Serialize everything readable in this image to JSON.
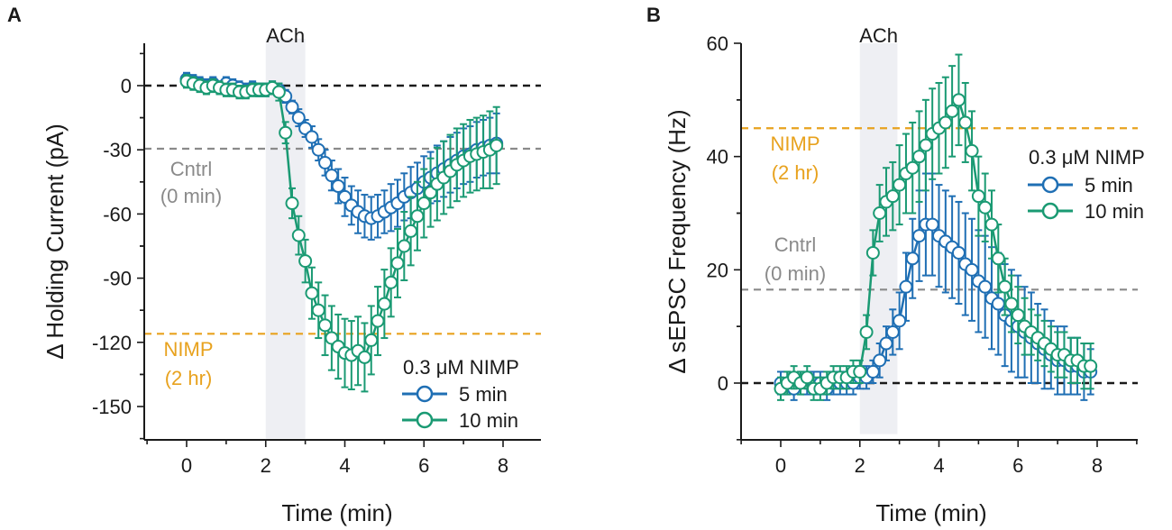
{
  "colors": {
    "series_5min": "#1f6fb4",
    "series_10min": "#1a9a73",
    "nimp_line": "#e8a21e",
    "cntrl_line": "#8a8a8a",
    "zero_line": "#1a1a1a",
    "ach_band": "#eeeff3"
  },
  "chart_data": [
    {
      "panel": "A",
      "type": "line",
      "xlabel": "Time (min)",
      "ylabel": "Δ Holding Current (pA)",
      "xlim": [
        -1,
        9
      ],
      "ylim": [
        -165,
        22
      ],
      "xticks": [
        0,
        2,
        4,
        6,
        8
      ],
      "yticks": [
        0,
        -30,
        -60,
        -90,
        -120,
        -150
      ],
      "xtick_labels": [
        "0",
        "2",
        "4",
        "6",
        "8"
      ],
      "ytick_labels": [
        "0",
        "-30",
        "-60",
        "-90",
        "-120",
        "-150"
      ],
      "band": {
        "label": "ACh",
        "x0": 2,
        "x1": 3
      },
      "reference_lines": [
        {
          "name": "zero",
          "y": 0
        },
        {
          "name": "cntrl",
          "y": -29.5,
          "label_line1": "Cntrl",
          "label_line2": "(0 min)"
        },
        {
          "name": "nimp",
          "y": -116,
          "label_line1": "NIMP",
          "label_line2": "(2 hr)"
        }
      ],
      "legend": {
        "title": "0.3 μM NIMP",
        "position": "bottom-right"
      },
      "series": [
        {
          "name": "5 min",
          "x": [
            0,
            0.167,
            0.333,
            0.5,
            0.667,
            0.833,
            1,
            1.167,
            1.333,
            1.5,
            1.667,
            1.833,
            2,
            2.167,
            2.333,
            2.5,
            2.667,
            2.833,
            3,
            3.167,
            3.333,
            3.5,
            3.667,
            3.833,
            4,
            4.167,
            4.333,
            4.5,
            4.667,
            4.833,
            5,
            5.167,
            5.333,
            5.5,
            5.667,
            5.833,
            6,
            6.167,
            6.333,
            6.5,
            6.667,
            6.833,
            7,
            7.167,
            7.333,
            7.5,
            7.667,
            7.833
          ],
          "y": [
            3,
            2,
            1,
            0,
            1,
            -1,
            1,
            0,
            -1,
            -2,
            -1,
            -2,
            -2,
            -1,
            -2,
            -5,
            -10,
            -15,
            -20,
            -24,
            -30,
            -36,
            -42,
            -47,
            -52,
            -56,
            -59,
            -61,
            -62,
            -61,
            -59,
            -57,
            -55,
            -52,
            -50,
            -48,
            -45,
            -43,
            -41,
            -39,
            -37,
            -35,
            -33,
            -32,
            -30,
            -29,
            -28,
            -27
          ],
          "err": [
            3,
            3,
            3,
            3,
            3,
            3,
            3,
            3,
            3,
            3,
            3,
            3,
            3,
            3,
            3,
            3,
            3,
            4,
            4,
            5,
            5,
            6,
            7,
            8,
            9,
            9,
            10,
            10,
            10,
            10,
            10,
            11,
            11,
            11,
            12,
            12,
            12,
            12,
            13,
            13,
            13,
            13,
            13,
            13,
            13,
            13,
            13,
            14
          ]
        },
        {
          "name": "10 min",
          "x": [
            0,
            0.167,
            0.333,
            0.5,
            0.667,
            0.833,
            1,
            1.167,
            1.333,
            1.5,
            1.667,
            1.833,
            2,
            2.167,
            2.333,
            2.5,
            2.667,
            2.833,
            3,
            3.167,
            3.333,
            3.5,
            3.667,
            3.833,
            4,
            4.167,
            4.333,
            4.5,
            4.667,
            4.833,
            5,
            5.167,
            5.333,
            5.5,
            5.667,
            5.833,
            6,
            6.167,
            6.333,
            6.5,
            6.667,
            6.833,
            7,
            7.167,
            7.333,
            7.5,
            7.667,
            7.833
          ],
          "y": [
            2,
            1,
            0,
            -1,
            0,
            -1,
            -2,
            -2,
            -3,
            -3,
            -2,
            -2,
            -2,
            -1,
            -3,
            -22,
            -55,
            -70,
            -82,
            -97,
            -105,
            -112,
            -118,
            -122,
            -125,
            -126,
            -124,
            -127,
            -119,
            -110,
            -102,
            -92,
            -83,
            -75,
            -68,
            -61,
            -55,
            -50,
            -46,
            -43,
            -40,
            -37,
            -35,
            -33,
            -32,
            -31,
            -30,
            -28
          ],
          "err": [
            3,
            3,
            3,
            3,
            3,
            3,
            3,
            3,
            3,
            3,
            3,
            3,
            3,
            3,
            4,
            5,
            7,
            9,
            10,
            12,
            13,
            14,
            15,
            15,
            16,
            16,
            16,
            16,
            16,
            16,
            16,
            16,
            16,
            16,
            16,
            16,
            16,
            16,
            17,
            17,
            17,
            17,
            17,
            17,
            17,
            17,
            18,
            18
          ]
        }
      ]
    },
    {
      "panel": "B",
      "type": "line",
      "xlabel": "Time (min)",
      "ylabel": "Δ sEPSC Frequency (Hz)",
      "xlim": [
        -1,
        9
      ],
      "ylim": [
        -9,
        60
      ],
      "xticks": [
        0,
        2,
        4,
        6,
        8
      ],
      "yticks": [
        0,
        20,
        40,
        60
      ],
      "xtick_labels": [
        "0",
        "2",
        "4",
        "6",
        "8"
      ],
      "ytick_labels": [
        "0",
        "20",
        "40",
        "60"
      ],
      "band": {
        "label": "ACh",
        "x0": 2,
        "x1": 2.95
      },
      "reference_lines": [
        {
          "name": "zero",
          "y": 0
        },
        {
          "name": "nimp",
          "y": 45,
          "label_line1": "NIMP",
          "label_line2": "(2 hr)"
        },
        {
          "name": "cntrl",
          "y": 16.5,
          "label_line1": "Cntrl",
          "label_line2": "(0 min)"
        }
      ],
      "legend": {
        "title": "0.3 μM NIMP",
        "position": "top-right"
      },
      "series": [
        {
          "name": "5 min",
          "x": [
            0,
            0.167,
            0.333,
            0.5,
            0.667,
            0.833,
            1,
            1.167,
            1.333,
            1.5,
            1.667,
            1.833,
            2,
            2.167,
            2.333,
            2.5,
            2.667,
            2.833,
            3,
            3.167,
            3.333,
            3.5,
            3.667,
            3.833,
            4,
            4.167,
            4.333,
            4.5,
            4.667,
            4.833,
            5,
            5.167,
            5.333,
            5.5,
            5.667,
            5.833,
            6,
            6.167,
            6.333,
            6.5,
            6.667,
            6.833,
            7,
            7.167,
            7.333,
            7.5,
            7.667,
            7.833
          ],
          "y": [
            0,
            0,
            -1,
            0,
            0,
            0,
            0,
            -1,
            0,
            0,
            0,
            0,
            1,
            1,
            2,
            4,
            7,
            9,
            11,
            17,
            22,
            26,
            28,
            28,
            26,
            25,
            24,
            23,
            21,
            20,
            18,
            17,
            15,
            14,
            12,
            11,
            10,
            9,
            8,
            7,
            6,
            5,
            4,
            4,
            3,
            3,
            2,
            2
          ],
          "err": [
            2,
            2,
            2,
            2,
            2,
            2,
            2,
            2,
            2,
            2,
            2,
            2,
            2,
            2,
            2,
            3,
            3,
            4,
            5,
            6,
            7,
            8,
            9,
            9,
            9,
            9,
            9,
            9,
            9,
            9,
            9,
            9,
            9,
            9,
            9,
            9,
            9,
            8,
            8,
            7,
            7,
            6,
            6,
            6,
            5,
            5,
            5,
            4
          ]
        },
        {
          "name": "10 min",
          "x": [
            0,
            0.167,
            0.333,
            0.5,
            0.667,
            0.833,
            1,
            1.167,
            1.333,
            1.5,
            1.667,
            1.833,
            2,
            2.167,
            2.333,
            2.5,
            2.667,
            2.833,
            3,
            3.167,
            3.333,
            3.5,
            3.667,
            3.833,
            4,
            4.167,
            4.333,
            4.5,
            4.667,
            4.833,
            5,
            5.167,
            5.333,
            5.5,
            5.667,
            5.833,
            6,
            6.167,
            6.333,
            6.5,
            6.667,
            6.833,
            7,
            7.167,
            7.333,
            7.5,
            7.667,
            7.833
          ],
          "y": [
            -1,
            0,
            1,
            0,
            1,
            -1,
            -1,
            0,
            1,
            1,
            1,
            2,
            2,
            9,
            23,
            30,
            32,
            33,
            35,
            37,
            38,
            40,
            42,
            44,
            45,
            46,
            48,
            50,
            46,
            41,
            33,
            31,
            28,
            22,
            17,
            14,
            12,
            10,
            9,
            8,
            7,
            6,
            5,
            5,
            4,
            4,
            3,
            3
          ],
          "err": [
            2,
            2,
            2,
            2,
            2,
            2,
            2,
            2,
            2,
            2,
            2,
            2,
            2,
            3,
            4,
            5,
            6,
            6,
            7,
            7,
            8,
            8,
            8,
            8,
            8,
            8,
            8,
            8,
            7,
            7,
            7,
            6,
            6,
            6,
            5,
            5,
            5,
            5,
            4,
            4,
            4,
            4,
            4,
            4,
            4,
            4,
            4,
            4
          ]
        }
      ]
    }
  ]
}
